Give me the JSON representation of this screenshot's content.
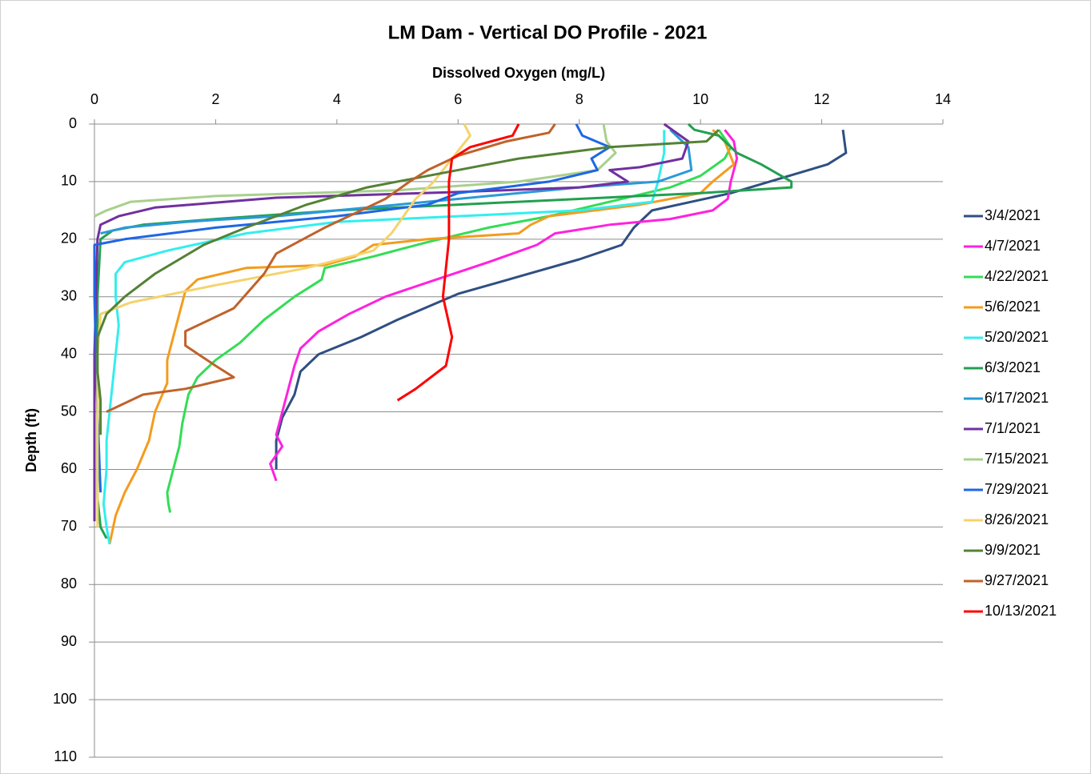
{
  "chart_data": {
    "type": "line",
    "title": "LM Dam - Vertical DO Profile - 2021",
    "x_label": "Dissolved Oxygen (mg/L)",
    "y_label": "Depth (ft)",
    "xlim": [
      0,
      14
    ],
    "xticks": [
      0,
      2,
      4,
      6,
      8,
      10,
      12,
      14
    ],
    "ylim": [
      0,
      110
    ],
    "yticks": [
      0,
      10,
      20,
      30,
      40,
      50,
      60,
      70,
      80,
      90,
      100,
      110
    ],
    "y_inverted": true,
    "x_axis_position": "top",
    "grid": true,
    "legend": "right",
    "series": [
      {
        "name": "3/4/2021",
        "color": "#2f4f82",
        "depth": [
          1,
          5,
          7,
          12,
          15,
          18,
          21,
          23.5,
          26.5,
          29.5,
          34,
          37,
          40,
          43,
          47,
          51,
          55,
          60
        ],
        "values": [
          12.35,
          12.4,
          12.1,
          10.5,
          9.2,
          8.9,
          8.7,
          8,
          7,
          6,
          5,
          4.4,
          3.7,
          3.4,
          3.3,
          3.1,
          3,
          3
        ]
      },
      {
        "name": "4/7/2021",
        "color": "#ff22dd",
        "depth": [
          1,
          3,
          6,
          10,
          13,
          15,
          16.5,
          17.5,
          19,
          21,
          24,
          27.5,
          30,
          33,
          36,
          39,
          42,
          46,
          50,
          54,
          56,
          59,
          62
        ],
        "values": [
          10.4,
          10.55,
          10.6,
          10.5,
          10.45,
          10.2,
          9.5,
          8.5,
          7.6,
          7.3,
          6.5,
          5.5,
          4.8,
          4.2,
          3.7,
          3.4,
          3.3,
          3.2,
          3.1,
          3,
          3.1,
          2.9,
          3
        ]
      },
      {
        "name": "4/22/2021",
        "color": "#33dd55",
        "depth": [
          1,
          4,
          6,
          9,
          11,
          13.5,
          16,
          18,
          20.5,
          23,
          25,
          27,
          30,
          34,
          38,
          41,
          44,
          47,
          52,
          56,
          60,
          64,
          66,
          67.5
        ],
        "values": [
          10.3,
          10.5,
          10.4,
          10,
          9.5,
          8.5,
          7.5,
          6.5,
          5.5,
          4.6,
          3.8,
          3.75,
          3.3,
          2.8,
          2.4,
          2,
          1.7,
          1.55,
          1.45,
          1.4,
          1.3,
          1.2,
          1.22,
          1.25
        ]
      },
      {
        "name": "5/6/2021",
        "color": "#f39c1e",
        "depth": [
          1,
          3,
          7,
          10,
          12,
          14,
          16,
          17.5,
          19,
          20,
          21,
          23,
          24.5,
          25,
          27,
          29,
          33,
          37,
          41,
          45,
          50,
          55,
          60,
          64,
          68,
          73
        ],
        "values": [
          10.2,
          10.4,
          10.55,
          10.2,
          10,
          9,
          7.5,
          7.2,
          7,
          5.5,
          4.6,
          4.3,
          3.8,
          2.5,
          1.7,
          1.5,
          1.4,
          1.3,
          1.2,
          1.2,
          1,
          0.9,
          0.7,
          0.5,
          0.35,
          0.25
        ]
      },
      {
        "name": "5/20/2021",
        "color": "#33eeee",
        "depth": [
          1,
          5,
          10,
          13.5,
          15,
          16,
          17,
          19,
          22,
          24,
          26,
          30,
          35,
          40,
          45,
          50,
          55,
          60,
          66,
          70,
          73
        ],
        "values": [
          9.4,
          9.4,
          9.3,
          9.2,
          8,
          6,
          4,
          2.5,
          1.2,
          0.5,
          0.35,
          0.35,
          0.4,
          0.35,
          0.3,
          0.25,
          0.2,
          0.2,
          0.15,
          0.2,
          0.25
        ]
      },
      {
        "name": "6/3/2021",
        "color": "#22a050",
        "depth": [
          0,
          1,
          2,
          5,
          7,
          10,
          11,
          12,
          13.5,
          15,
          16.5,
          17.5,
          18.5,
          20,
          30,
          50,
          65,
          70,
          72
        ],
        "values": [
          9.8,
          9.9,
          10.3,
          10.6,
          11,
          11.5,
          11.5,
          10,
          7,
          4,
          2,
          0.8,
          0.3,
          0.1,
          0.05,
          0.05,
          0.05,
          0.1,
          0.2
        ]
      },
      {
        "name": "6/17/2021",
        "color": "#2a9ad8",
        "depth": [
          1,
          4,
          8,
          10,
          11,
          12.5,
          14,
          16,
          17,
          18,
          19
        ],
        "values": [
          9.5,
          9.8,
          9.85,
          9.3,
          8,
          6.5,
          5,
          3,
          1.5,
          0.5,
          0.1
        ]
      },
      {
        "name": "7/1/2021",
        "color": "#7030a0",
        "depth": [
          0,
          3,
          6,
          7.5,
          8,
          10,
          11,
          11.8,
          12.8,
          14.5,
          16,
          17.5,
          20,
          40,
          66,
          69
        ],
        "values": [
          9.4,
          9.8,
          9.7,
          9,
          8.5,
          8.8,
          8,
          6,
          3,
          1,
          0.4,
          0.1,
          0.05,
          0,
          0,
          0
        ]
      },
      {
        "name": "7/15/2021",
        "color": "#a9d08e",
        "depth": [
          0,
          3,
          5,
          8,
          10,
          11.5,
          12.5,
          13.5,
          15,
          16
        ],
        "values": [
          8.4,
          8.45,
          8.6,
          8.3,
          7,
          5,
          2,
          0.6,
          0.2,
          0
        ]
      },
      {
        "name": "7/29/2021",
        "color": "#1f66e5",
        "depth": [
          0,
          2,
          4,
          6,
          8,
          10,
          12,
          14,
          16,
          18,
          20,
          21,
          30,
          50,
          64
        ],
        "values": [
          7.95,
          8.05,
          8.5,
          8.2,
          8.3,
          7.5,
          6,
          5.5,
          4,
          2,
          0.5,
          0,
          0,
          0.05,
          0.1
        ]
      },
      {
        "name": "8/26/2021",
        "color": "#f5d36b",
        "depth": [
          0,
          2,
          6,
          10,
          13,
          16,
          19,
          22,
          25,
          28,
          31,
          33,
          40,
          50,
          60,
          70
        ],
        "values": [
          6.1,
          6.2,
          5.9,
          5.6,
          5.3,
          5.1,
          4.9,
          4.6,
          3.5,
          2,
          0.6,
          0.1,
          0.05,
          0.05,
          0.05,
          0.05
        ]
      },
      {
        "name": "9/9/2021",
        "color": "#548235",
        "depth": [
          1,
          3,
          4,
          6,
          9,
          11,
          14,
          18,
          21,
          26,
          30,
          33,
          37,
          43,
          48,
          54
        ],
        "values": [
          10.3,
          10.1,
          8.5,
          7,
          5.5,
          4.5,
          3.5,
          2.5,
          1.8,
          1,
          0.5,
          0.2,
          0.05,
          0.05,
          0.1,
          0.1
        ]
      },
      {
        "name": "9/27/2021",
        "color": "#c0622a",
        "depth": [
          0,
          1.5,
          3,
          5.5,
          8,
          10,
          13,
          18,
          22.5,
          26,
          32,
          36,
          38.5,
          42,
          44,
          46,
          47,
          50
        ],
        "values": [
          7.6,
          7.5,
          6.8,
          6,
          5.5,
          5.2,
          4.8,
          3.8,
          3,
          2.8,
          2.3,
          1.5,
          1.5,
          2,
          2.3,
          1.5,
          0.8,
          0.2
        ]
      },
      {
        "name": "10/13/2021",
        "color": "#ff0000",
        "depth": [
          0,
          2,
          4,
          6,
          10,
          20,
          30,
          37,
          42,
          46,
          48
        ],
        "values": [
          7,
          6.9,
          6.2,
          5.9,
          5.85,
          5.85,
          5.75,
          5.9,
          5.8,
          5.3,
          5
        ]
      }
    ]
  }
}
